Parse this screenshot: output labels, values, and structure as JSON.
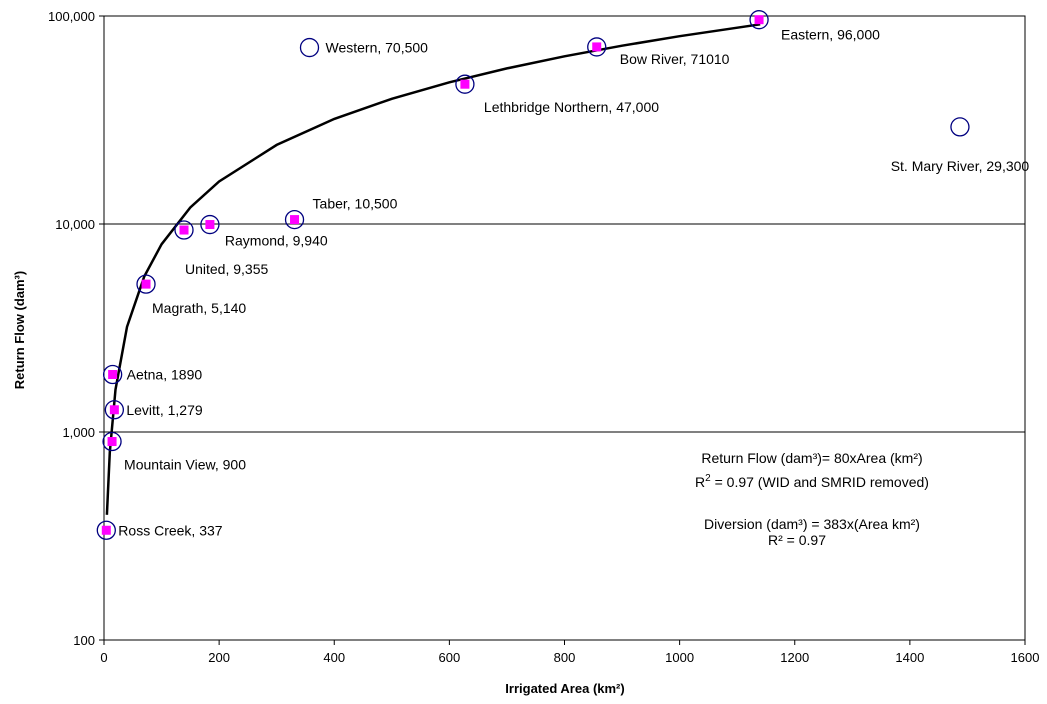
{
  "chart_data": {
    "type": "scatter",
    "title": "",
    "xlabel": "Irrigated Area (km²)",
    "ylabel": "Return Flow (dam³)",
    "xlim": [
      0,
      1600
    ],
    "ylim": [
      100,
      100000
    ],
    "yscale": "log",
    "x_ticks": [
      0,
      200,
      400,
      600,
      800,
      1000,
      1200,
      1400,
      1600
    ],
    "x_tick_labels": [
      "0",
      "200",
      "400",
      "600",
      "800",
      "1000",
      "1200",
      "1400",
      "1600"
    ],
    "y_ticks": [
      100,
      1000,
      10000,
      100000
    ],
    "y_tick_labels": [
      "100",
      "1,000",
      "10,000",
      "100,000"
    ],
    "grid": "horizontal major lines",
    "points": [
      {
        "label": "Ross Creek, 337",
        "x": 4,
        "y": 337,
        "fit_marker": true
      },
      {
        "label": "Mountain View, 900",
        "x": 14,
        "y": 900,
        "fit_marker": true
      },
      {
        "label": "Levitt, 1,279",
        "x": 18,
        "y": 1279,
        "fit_marker": true
      },
      {
        "label": "Aetna, 1890",
        "x": 15,
        "y": 1890,
        "fit_marker": true
      },
      {
        "label": "Magrath, 5,140",
        "x": 73,
        "y": 5140,
        "fit_marker": true
      },
      {
        "label": "United, 9,355",
        "x": 139,
        "y": 9355,
        "fit_marker": true
      },
      {
        "label": "Raymond, 9,940",
        "x": 184,
        "y": 9940,
        "fit_marker": true
      },
      {
        "label": "Taber, 10,500",
        "x": 331,
        "y": 10500,
        "fit_marker": true
      },
      {
        "label": "Western, 70,500",
        "x": 357,
        "y": 70500,
        "fit_marker": false
      },
      {
        "label": "Lethbridge Northern, 47,000",
        "x": 627,
        "y": 47000,
        "fit_marker": true
      },
      {
        "label": "Bow River, 71010",
        "x": 856,
        "y": 71010,
        "fit_marker": true
      },
      {
        "label": "Eastern, 96,000",
        "x": 1138,
        "y": 96000,
        "fit_marker": true
      },
      {
        "label": "St. Mary River, 29,300",
        "x": 1487,
        "y": 29300,
        "fit_marker": false
      }
    ],
    "trendline": {
      "x": [
        5,
        10,
        20,
        40,
        70,
        100,
        150,
        200,
        300,
        400,
        500,
        600,
        700,
        800,
        900,
        1000,
        1140
      ],
      "y": [
        400,
        800,
        1600,
        3200,
        5600,
        8000,
        12000,
        16000,
        24000,
        32000,
        40000,
        48000,
        56000,
        64000,
        72000,
        80000,
        91200
      ]
    },
    "colors": {
      "circle_edge": "#000080",
      "marker_fill": "#ff00ff",
      "trendline": "#000000"
    },
    "annotations": {
      "eq1": "Return Flow (dam³)= 80xArea (km²)",
      "r2_prefix": "R",
      "r2_sup": "2",
      "r2_rest": " = 0.97 (WID and SMRID removed)",
      "eq2": "Diversion (dam³) = 383x(Area km²)",
      "eq2_r2": "R² = 0.97"
    }
  }
}
